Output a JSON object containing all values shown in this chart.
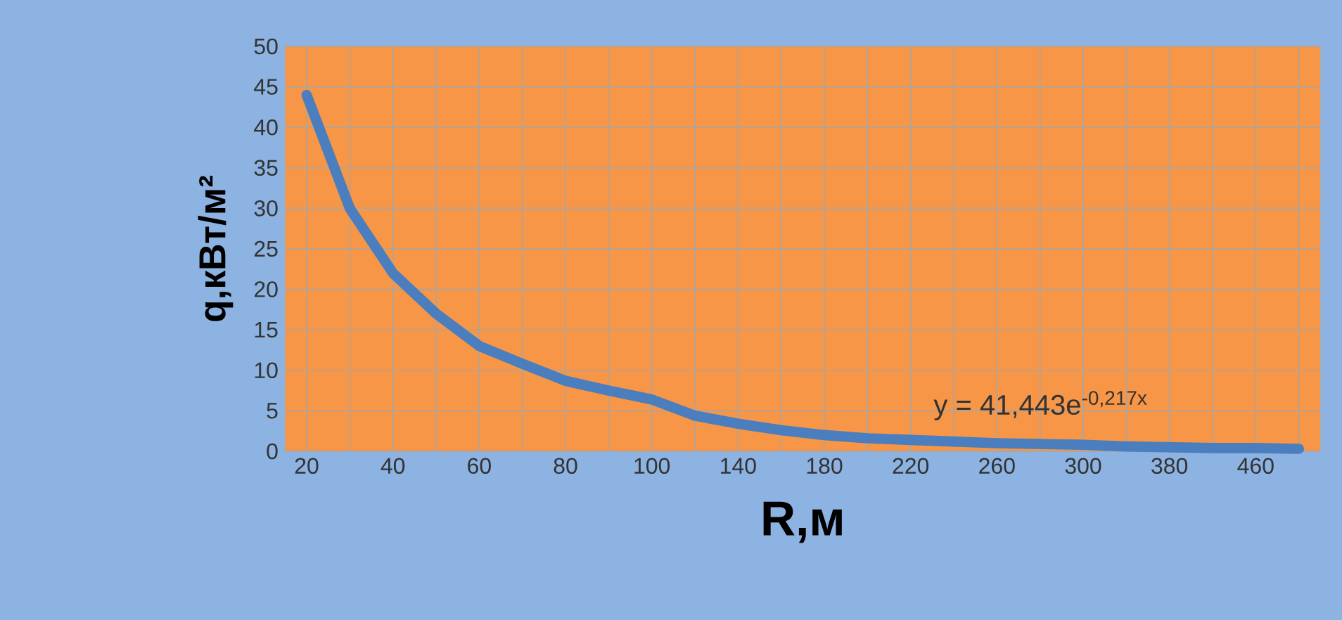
{
  "chart_data": {
    "type": "line",
    "categories": [
      "20",
      null,
      "40",
      null,
      "60",
      null,
      "80",
      null,
      "100",
      null,
      "140",
      null,
      "180",
      null,
      "220",
      null,
      "260",
      null,
      "300",
      null,
      "380",
      null,
      "460",
      null
    ],
    "series": [
      {
        "color": "#4a7ebf",
        "values": [
          44,
          30,
          22,
          17,
          13,
          10.8,
          8.7,
          7.5,
          6.4,
          4.4,
          3.4,
          2.6,
          2.0,
          1.6,
          1.4,
          1.2,
          1.0,
          0.9,
          0.8,
          0.6,
          0.5,
          0.4,
          0.4,
          0.3
        ]
      }
    ],
    "xlabel": "R,м",
    "ylabel": "q,кВт/м²",
    "ylim": [
      0,
      50
    ],
    "yticks": [
      0,
      5,
      10,
      15,
      20,
      25,
      30,
      35,
      40,
      45,
      50
    ],
    "grid": true,
    "annotations": [
      "y = 41,443e$^{-0,217x}$"
    ]
  }
}
